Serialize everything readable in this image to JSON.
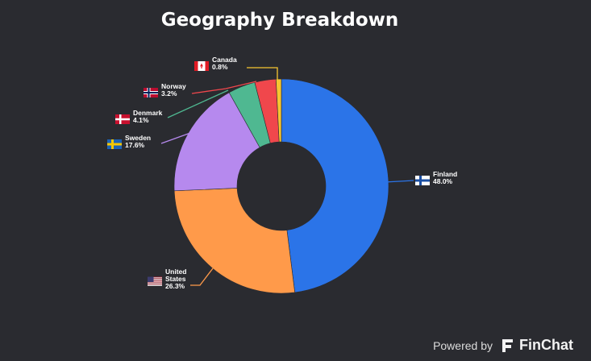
{
  "chart_data": {
    "type": "pie",
    "title": "Geography Breakdown",
    "donut": true,
    "slices": [
      {
        "label": "Finland",
        "value": 48.0,
        "value_label": "48.0%",
        "color": "#2b74e8",
        "flag": "finland-flag"
      },
      {
        "label": "United States",
        "label_lines": [
          "United",
          "States"
        ],
        "value": 26.3,
        "value_label": "26.3%",
        "color": "#ff9a4a",
        "flag": "usa-flag"
      },
      {
        "label": "Sweden",
        "value": 17.6,
        "value_label": "17.6%",
        "color": "#b689ee",
        "flag": "sweden-flag"
      },
      {
        "label": "Denmark",
        "value": 4.1,
        "value_label": "4.1%",
        "color": "#4fb891",
        "flag": "denmark-flag"
      },
      {
        "label": "Norway",
        "value": 3.2,
        "value_label": "3.2%",
        "color": "#f0474c",
        "flag": "norway-flag"
      },
      {
        "label": "Canada",
        "value": 0.8,
        "value_label": "0.8%",
        "color": "#f7c531",
        "flag": "canada-flag"
      }
    ]
  },
  "footer": {
    "powered_by": "Powered by",
    "brand": "FinChat"
  },
  "colors": {
    "background": "#2a2b30",
    "text": "#ffffff"
  }
}
